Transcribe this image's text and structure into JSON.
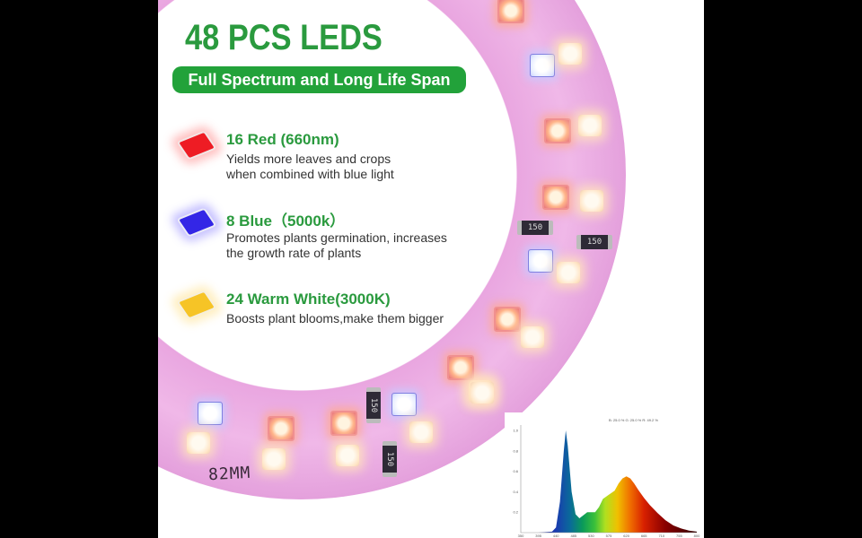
{
  "header": {
    "title": "48 PCS LEDS",
    "subtitle": "Full Spectrum and Long Life Span"
  },
  "features": [
    {
      "icon": "red-led-chip-icon",
      "color": "#ee1c24",
      "heading": "16 Red (660nm)",
      "description": "Yields more leaves and crops\nwhen combined with blue light"
    },
    {
      "icon": "blue-led-chip-icon",
      "color": "#3326e6",
      "heading": "8 Blue（5000k）",
      "description": "Promotes plants germination, increases\nthe growth rate of plants"
    },
    {
      "icon": "warm-white-led-chip-icon",
      "color": "#f6c426",
      "heading": "24 Warm White(3000K)",
      "description": "Boosts plant blooms,make them bigger"
    }
  ],
  "ring": {
    "label": "82MM",
    "resistor_code": "150"
  },
  "colors": {
    "accent_green": "#22a23a",
    "title_green": "#2a9a3e",
    "ring_pink": "#eaa8e2"
  },
  "chart_data": {
    "type": "area",
    "title": "",
    "legend_text": "B: 25.0 %  G: 25.0 %  R: 49.2 %",
    "xlabel": "",
    "ylabel": "",
    "x_ticks": [
      350,
      395,
      440,
      485,
      530,
      575,
      620,
      665,
      710,
      755,
      800
    ],
    "y_ticks": [
      0.2,
      0.4,
      0.6,
      0.8,
      1.0
    ],
    "xlim": [
      350,
      800
    ],
    "ylim": [
      0,
      1.0
    ],
    "x": [
      350,
      395,
      430,
      440,
      450,
      460,
      465,
      470,
      480,
      490,
      500,
      510,
      520,
      530,
      540,
      550,
      560,
      575,
      590,
      600,
      610,
      620,
      630,
      640,
      650,
      665,
      680,
      700,
      720,
      740,
      760,
      780,
      800
    ],
    "values": [
      0.0,
      0.0,
      0.01,
      0.05,
      0.3,
      0.8,
      1.0,
      0.85,
      0.4,
      0.18,
      0.14,
      0.17,
      0.2,
      0.2,
      0.2,
      0.25,
      0.33,
      0.37,
      0.41,
      0.48,
      0.53,
      0.55,
      0.53,
      0.48,
      0.42,
      0.34,
      0.27,
      0.19,
      0.12,
      0.07,
      0.04,
      0.02,
      0.01
    ],
    "grid": false,
    "legend_position": "top"
  }
}
